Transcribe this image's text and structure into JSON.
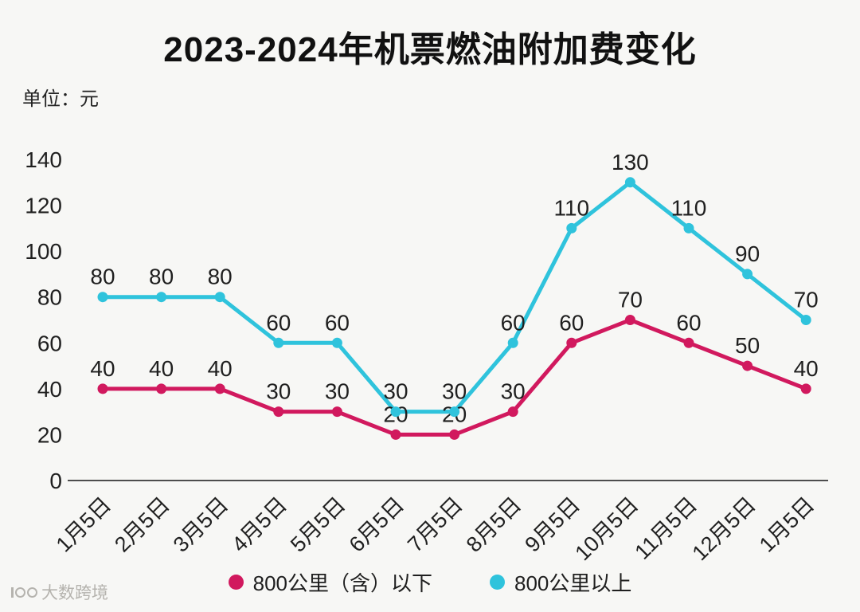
{
  "title": "2023-2024年机票燃油附加费变化",
  "unit_label": "单位：元",
  "watermark": {
    "text": "大数跨境"
  },
  "legend": {
    "items": [
      {
        "label": "800公里（含）以下",
        "color": "#d1195e"
      },
      {
        "label": "800公里以上",
        "color": "#2fc3dc"
      }
    ]
  },
  "chart_data": {
    "type": "line",
    "title": "2023-2024年机票燃油附加费变化",
    "unit": "元",
    "categories": [
      "1月5日",
      "2月5日",
      "3月5日",
      "4月5日",
      "5月5日",
      "6月5日",
      "7月5日",
      "8月5日",
      "9月5日",
      "10月5日",
      "11月5日",
      "12月5日",
      "1月5日"
    ],
    "series": [
      {
        "name": "800公里（含）以下",
        "color": "#d1195e",
        "values": [
          40,
          40,
          40,
          30,
          30,
          20,
          20,
          30,
          60,
          70,
          60,
          50,
          40
        ]
      },
      {
        "name": "800公里以上",
        "color": "#2fc3dc",
        "values": [
          80,
          80,
          80,
          60,
          60,
          30,
          30,
          60,
          110,
          130,
          110,
          90,
          70
        ]
      }
    ],
    "ylim": [
      0,
      140
    ],
    "ytick_step": 20,
    "grid": false,
    "data_labels": true,
    "legend_position": "bottom",
    "x_label_rotation": -45
  }
}
